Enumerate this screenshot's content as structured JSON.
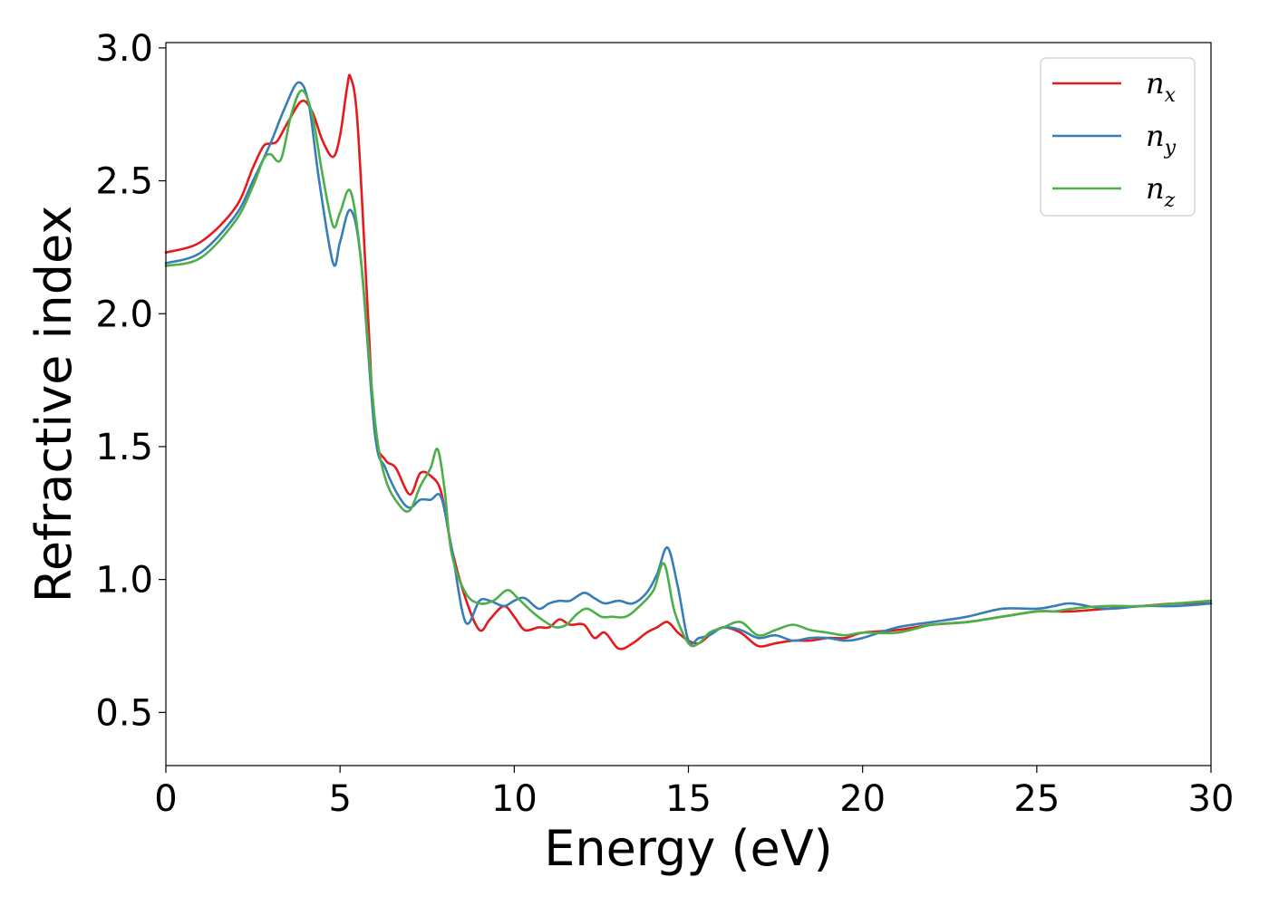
{
  "chart_data": {
    "type": "line",
    "xlabel": "Energy (eV)",
    "ylabel": "Refractive index",
    "xlim": [
      0,
      30
    ],
    "ylim": [
      0.3,
      3.02
    ],
    "xticks": [
      "0",
      "5",
      "10",
      "15",
      "20",
      "25",
      "30"
    ],
    "yticks": [
      "0.5",
      "1.0",
      "1.5",
      "2.0",
      "2.5",
      "3.0"
    ],
    "grid": false,
    "legend_position": "top-right",
    "series": [
      {
        "name": "n",
        "subscript": "x",
        "color": "#e41a1c",
        "x": [
          0,
          1,
          2,
          2.5,
          2.8,
          3.0,
          3.2,
          3.5,
          3.9,
          4.2,
          4.5,
          4.8,
          5.0,
          5.2,
          5.3,
          5.5,
          5.8,
          6.0,
          6.3,
          6.6,
          7.0,
          7.3,
          7.6,
          7.9,
          8.2,
          8.6,
          9.0,
          9.3,
          9.7,
          10.0,
          10.3,
          10.7,
          11.0,
          11.3,
          11.6,
          12.0,
          12.3,
          12.6,
          13.0,
          13.4,
          13.8,
          14.1,
          14.4,
          14.7,
          15.0,
          15.3,
          15.6,
          16.0,
          16.5,
          17.0,
          17.5,
          18.0,
          18.5,
          19.0,
          19.5,
          20.0,
          21.0,
          22.0,
          23.0,
          24.0,
          25.0,
          25.5,
          26.0,
          27.0,
          28.0,
          29.0,
          30.0
        ],
        "y": [
          2.23,
          2.27,
          2.4,
          2.55,
          2.63,
          2.64,
          2.65,
          2.72,
          2.8,
          2.76,
          2.65,
          2.59,
          2.67,
          2.85,
          2.89,
          2.72,
          2.0,
          1.55,
          1.45,
          1.42,
          1.32,
          1.4,
          1.39,
          1.33,
          1.12,
          0.93,
          0.81,
          0.85,
          0.9,
          0.86,
          0.81,
          0.82,
          0.82,
          0.85,
          0.83,
          0.83,
          0.78,
          0.8,
          0.74,
          0.76,
          0.8,
          0.82,
          0.84,
          0.8,
          0.77,
          0.76,
          0.79,
          0.82,
          0.8,
          0.75,
          0.76,
          0.77,
          0.77,
          0.78,
          0.78,
          0.8,
          0.81,
          0.83,
          0.84,
          0.86,
          0.88,
          0.88,
          0.88,
          0.89,
          0.9,
          0.91,
          0.91
        ]
      },
      {
        "name": "n",
        "subscript": "y",
        "color": "#377eb8",
        "x": [
          0,
          1,
          2,
          2.5,
          3.0,
          3.4,
          3.8,
          4.1,
          4.4,
          4.8,
          5.0,
          5.3,
          5.6,
          6.0,
          6.3,
          6.7,
          7.0,
          7.3,
          7.6,
          7.9,
          8.2,
          8.6,
          9.0,
          9.3,
          9.7,
          10.0,
          10.3,
          10.7,
          11.0,
          11.3,
          11.6,
          12.0,
          12.3,
          12.6,
          13.0,
          13.4,
          13.8,
          14.1,
          14.4,
          14.7,
          15.0,
          15.3,
          15.6,
          16.0,
          16.5,
          17.0,
          17.5,
          18.0,
          18.5,
          19.0,
          19.5,
          20.0,
          21.0,
          22.0,
          23.0,
          24.0,
          25.0,
          25.5,
          26.0,
          27.0,
          28.0,
          29.0,
          30.0
        ],
        "y": [
          2.19,
          2.23,
          2.37,
          2.5,
          2.64,
          2.77,
          2.87,
          2.79,
          2.5,
          2.19,
          2.27,
          2.39,
          2.2,
          1.55,
          1.42,
          1.31,
          1.27,
          1.3,
          1.3,
          1.31,
          1.12,
          0.84,
          0.92,
          0.92,
          0.9,
          0.92,
          0.93,
          0.89,
          0.91,
          0.92,
          0.92,
          0.95,
          0.93,
          0.91,
          0.92,
          0.91,
          0.95,
          1.02,
          1.12,
          0.97,
          0.77,
          0.78,
          0.79,
          0.82,
          0.81,
          0.78,
          0.79,
          0.77,
          0.78,
          0.78,
          0.77,
          0.78,
          0.82,
          0.84,
          0.86,
          0.89,
          0.89,
          0.9,
          0.91,
          0.89,
          0.9,
          0.9,
          0.91
        ]
      },
      {
        "name": "n",
        "subscript": "z",
        "color": "#4daf4a",
        "x": [
          0,
          1,
          2,
          2.5,
          2.8,
          3.0,
          3.3,
          3.6,
          3.9,
          4.2,
          4.5,
          4.8,
          5.0,
          5.3,
          5.6,
          6.0,
          6.3,
          6.7,
          7.0,
          7.3,
          7.6,
          7.8,
          8.0,
          8.2,
          8.6,
          9.0,
          9.4,
          9.8,
          10.1,
          10.5,
          10.9,
          11.2,
          11.5,
          11.8,
          12.1,
          12.5,
          12.8,
          13.2,
          13.6,
          14.0,
          14.3,
          14.6,
          15.0,
          15.3,
          15.6,
          16.0,
          16.5,
          17.0,
          17.5,
          18.0,
          18.5,
          19.0,
          19.5,
          20.0,
          21.0,
          22.0,
          23.0,
          24.0,
          25.0,
          25.5,
          26.0,
          27.0,
          28.0,
          29.0,
          30.0
        ],
        "y": [
          2.18,
          2.21,
          2.35,
          2.48,
          2.58,
          2.6,
          2.58,
          2.75,
          2.84,
          2.75,
          2.52,
          2.33,
          2.38,
          2.46,
          2.2,
          1.6,
          1.38,
          1.28,
          1.26,
          1.35,
          1.42,
          1.49,
          1.34,
          1.1,
          0.95,
          0.91,
          0.92,
          0.96,
          0.93,
          0.88,
          0.84,
          0.82,
          0.83,
          0.87,
          0.89,
          0.86,
          0.86,
          0.86,
          0.9,
          0.96,
          1.06,
          0.88,
          0.76,
          0.76,
          0.8,
          0.82,
          0.84,
          0.79,
          0.81,
          0.83,
          0.81,
          0.8,
          0.79,
          0.8,
          0.8,
          0.83,
          0.84,
          0.86,
          0.88,
          0.88,
          0.89,
          0.9,
          0.9,
          0.91,
          0.92
        ]
      }
    ]
  }
}
